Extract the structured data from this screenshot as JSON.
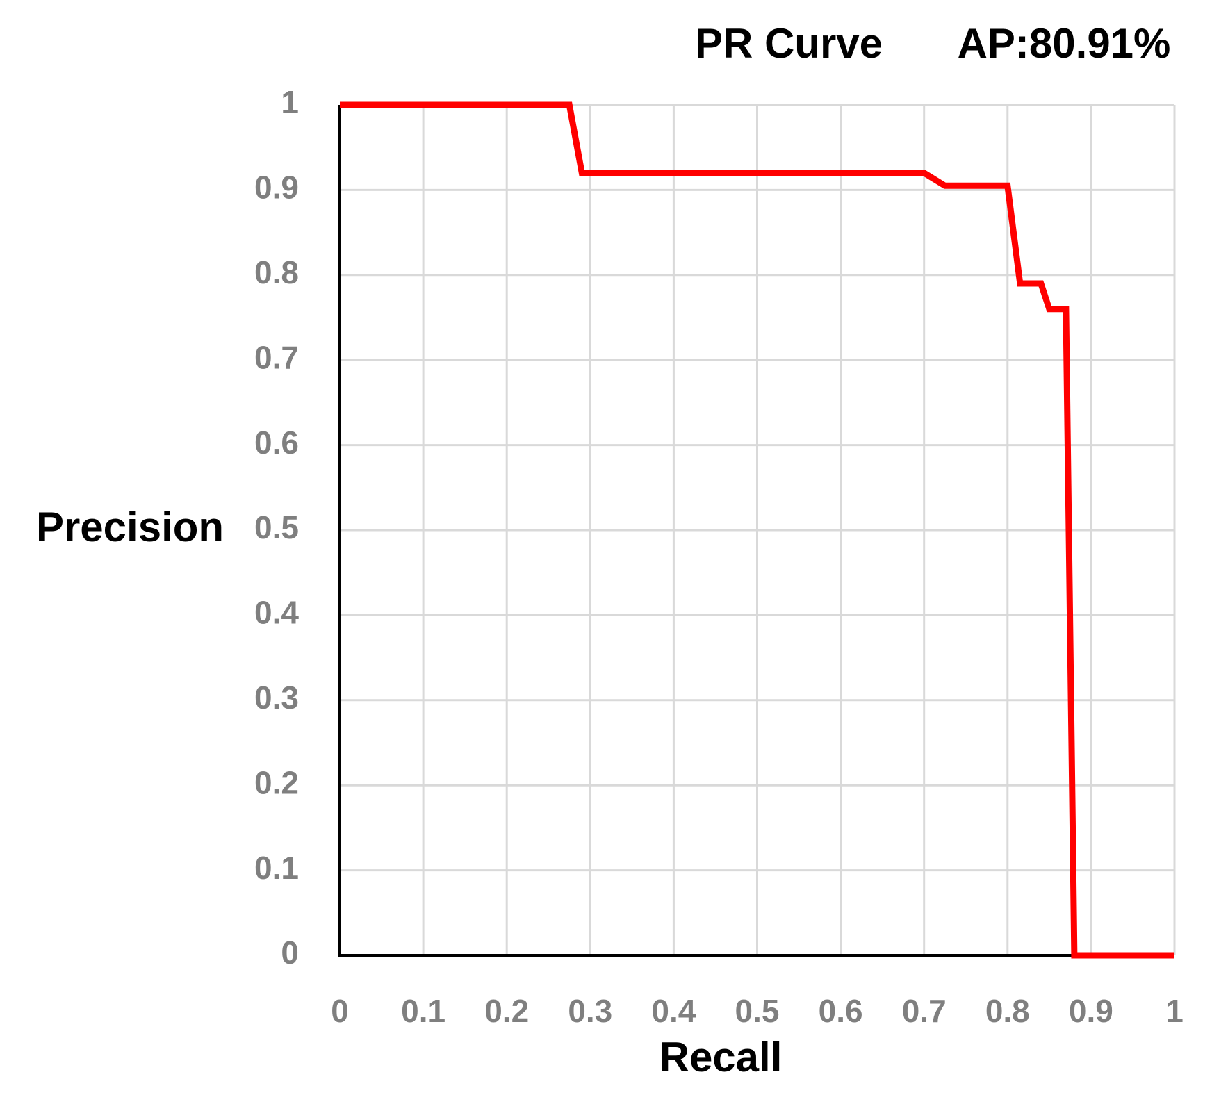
{
  "chart_data": {
    "type": "line",
    "title": "PR Curve",
    "annotation": "AP:80.91%",
    "annotation_color": "#d4960f",
    "x_label": "Recall",
    "y_label": "Precision",
    "x": [
      0,
      0.275,
      0.29,
      0.7,
      0.725,
      0.8,
      0.815,
      0.84,
      0.85,
      0.87,
      0.88,
      1
    ],
    "series": [
      {
        "color": "#ff0000",
        "values": [
          1,
          1,
          0.92,
          0.92,
          0.905,
          0.905,
          0.79,
          0.79,
          0.76,
          0.76,
          0,
          0
        ]
      }
    ],
    "xlim": [
      0,
      1
    ],
    "ylim": [
      0,
      1
    ],
    "xticks": [
      0,
      0.1,
      0.2,
      0.3,
      0.4,
      0.5,
      0.6,
      0.7,
      0.8,
      0.9,
      1
    ],
    "yticks": [
      0,
      0.1,
      0.2,
      0.3,
      0.4,
      0.5,
      0.6,
      0.7,
      0.8,
      0.9,
      1
    ],
    "grid": true
  }
}
